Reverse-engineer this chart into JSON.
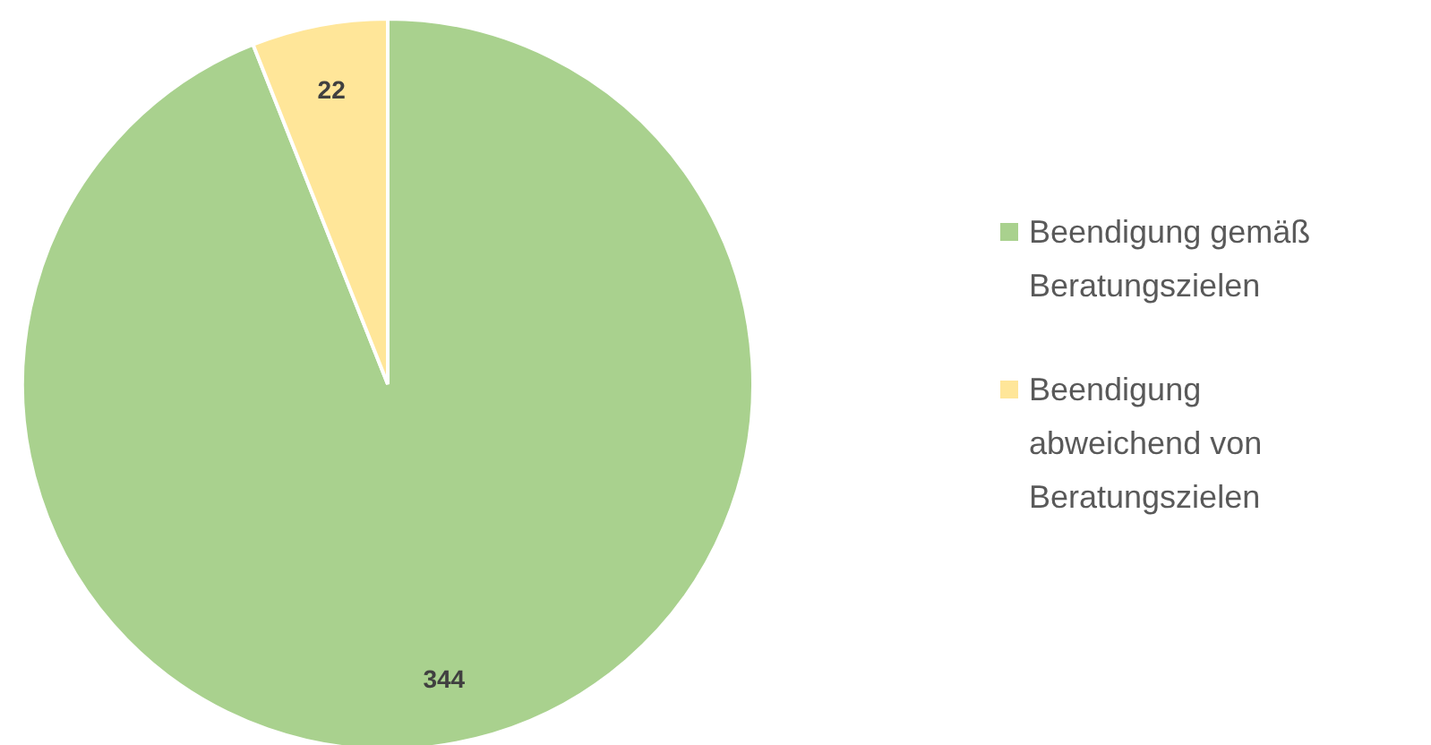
{
  "chart_data": {
    "type": "pie",
    "categories": [
      "Beendigung gemäß Beratungszielen",
      "Beendigung abweichend von Beratungszielen"
    ],
    "values": [
      344,
      22
    ],
    "colors": [
      "#a9d18e",
      "#ffe699"
    ],
    "data_labels": true,
    "legend": "right"
  }
}
